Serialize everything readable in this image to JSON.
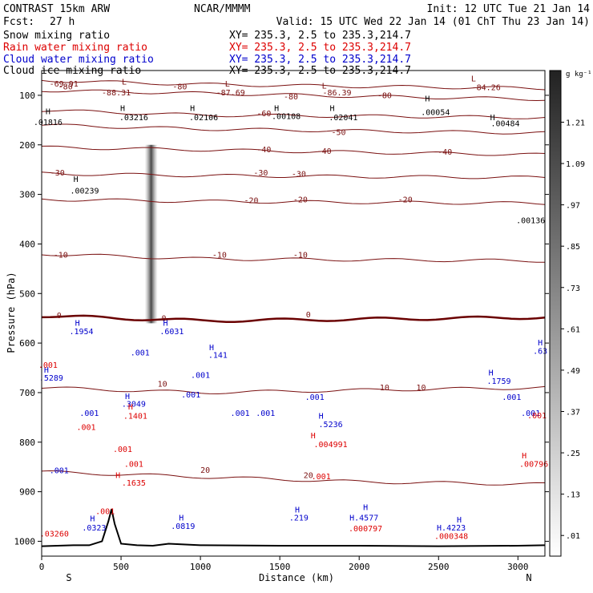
{
  "header": {
    "title": "CONTRAST 15km ARW",
    "center": "NCAR/MMMM",
    "init": "Init: 12 UTC Tue 21 Jan 14",
    "fcst_label": "Fcst:",
    "fcst_value": "27 h",
    "valid": "Valid: 15 UTC Wed 22 Jan 14 (01 ChT Thu 23 Jan 14)",
    "fields": [
      {
        "label": "Snow mixing ratio",
        "xy": "XY= 235.3,  2.5 to 235.3,214.7",
        "color": "#000000"
      },
      {
        "label": "Rain water mixing ratio",
        "xy": "XY= 235.3,  2.5 to 235.3,214.7",
        "color": "#dd0000"
      },
      {
        "label": "Cloud water mixing ratio",
        "xy": "XY= 235.3,  2.5 to 235.3,214.7",
        "color": "#0000cc"
      },
      {
        "label": "Cloud ice mixing ratio",
        "xy": "XY= 235.3,  2.5 to 235.3,214.7",
        "color": "#000000"
      }
    ]
  },
  "colors": {
    "temperature": "#7a1010",
    "freezing": "#6a0000",
    "cloud_water": "#0000cc",
    "rain": "#dd0000",
    "snow": "#000000"
  },
  "chart_data": {
    "type": "cross-section",
    "xlabel": "Distance (km)",
    "ylabel": "Pressure (hPa)",
    "xlim": [
      0,
      3170
    ],
    "ylim": [
      50,
      1030
    ],
    "x_ticks": [
      0,
      500,
      1000,
      1500,
      2000,
      2500,
      3000
    ],
    "y_ticks": [
      100,
      200,
      300,
      400,
      500,
      600,
      700,
      800,
      900,
      1000
    ],
    "end_labels": {
      "left": "S",
      "right": "N"
    },
    "terrain_profile": {
      "distance_km": [
        0,
        100,
        200,
        300,
        380,
        420,
        440,
        460,
        500,
        600,
        700,
        800,
        1000,
        1500,
        2000,
        2500,
        3000,
        3170
      ],
      "pressure_hPa": [
        1010,
        1009,
        1008,
        1008,
        1000,
        960,
        935,
        965,
        1005,
        1008,
        1009,
        1005,
        1008,
        1009,
        1009,
        1010,
        1009,
        1008
      ]
    },
    "snow_column": {
      "distance_km": 690,
      "p_top": 200,
      "p_bottom": 560
    },
    "colorbar": {
      "unit": "g kg⁻¹",
      "tick_labels": [
        ".01",
        ".13",
        ".25",
        ".37",
        ".49",
        ".61",
        ".73",
        ".85",
        ".97",
        "1.09",
        "1.21"
      ],
      "tick_values": [
        0.01,
        0.13,
        0.25,
        0.37,
        0.49,
        0.61,
        0.73,
        0.85,
        0.97,
        1.09,
        1.21
      ]
    },
    "temperature_contours": [
      {
        "level": -80,
        "p": [
          70,
          78,
          82,
          86
        ]
      },
      {
        "level": -70,
        "p": [
          90,
          96,
          102,
          108
        ]
      },
      {
        "level": -60,
        "p": [
          130,
          140,
          142,
          145
        ]
      },
      {
        "level": -50,
        "p": [
          160,
          168,
          172,
          176
        ]
      },
      {
        "level": -40,
        "p": [
          205,
          210,
          215,
          220
        ]
      },
      {
        "level": -30,
        "p": [
          258,
          262,
          264,
          266
        ]
      },
      {
        "level": -20,
        "p": [
          310,
          314,
          316,
          318
        ]
      },
      {
        "level": -10,
        "p": [
          420,
          430,
          432,
          434
        ]
      },
      {
        "level": 0,
        "p": [
          545,
          555,
          552,
          548
        ]
      },
      {
        "level": 10,
        "p": [
          690,
          700,
          695,
          690
        ]
      },
      {
        "level": 20,
        "p": [
          860,
          870,
          880,
          885
        ]
      }
    ],
    "contour_labels": [
      {
        "text": "-80",
        "x": 150,
        "p": 88,
        "kind": "temp"
      },
      {
        "text": "-80",
        "x": 870,
        "p": 88,
        "kind": "temp"
      },
      {
        "text": "-80",
        "x": 1570,
        "p": 108,
        "kind": "temp"
      },
      {
        "text": "-80",
        "x": 2160,
        "p": 106,
        "kind": "temp"
      },
      {
        "text": "-60",
        "x": 1400,
        "p": 142,
        "kind": "temp"
      },
      {
        "text": "-50",
        "x": 1870,
        "p": 180,
        "kind": "temp"
      },
      {
        "text": "-40",
        "x": 1400,
        "p": 215,
        "kind": "temp"
      },
      {
        "text": "-40",
        "x": 1780,
        "p": 218,
        "kind": "temp"
      },
      {
        "text": "-40",
        "x": 2540,
        "p": 220,
        "kind": "temp"
      },
      {
        "text": "-30",
        "x": 100,
        "p": 262,
        "kind": "temp"
      },
      {
        "text": "-30",
        "x": 1380,
        "p": 262,
        "kind": "temp"
      },
      {
        "text": "-30",
        "x": 1620,
        "p": 264,
        "kind": "temp"
      },
      {
        "text": "-20",
        "x": 1320,
        "p": 318,
        "kind": "temp"
      },
      {
        "text": "-20",
        "x": 1630,
        "p": 316,
        "kind": "temp"
      },
      {
        "text": "-20",
        "x": 2290,
        "p": 316,
        "kind": "temp"
      },
      {
        "text": "-10",
        "x": 120,
        "p": 428,
        "kind": "temp"
      },
      {
        "text": "-10",
        "x": 1120,
        "p": 428,
        "kind": "temp"
      },
      {
        "text": "-10",
        "x": 1630,
        "p": 428,
        "kind": "temp"
      },
      {
        "text": "0",
        "x": 110,
        "p": 550,
        "kind": "temp"
      },
      {
        "text": "0",
        "x": 770,
        "p": 555,
        "kind": "temp"
      },
      {
        "text": "0",
        "x": 1680,
        "p": 548,
        "kind": "temp"
      },
      {
        "text": "10",
        "x": 760,
        "p": 688,
        "kind": "temp"
      },
      {
        "text": "10",
        "x": 2160,
        "p": 695,
        "kind": "temp"
      },
      {
        "text": "10",
        "x": 2390,
        "p": 695,
        "kind": "temp"
      },
      {
        "text": "20",
        "x": 1030,
        "p": 862,
        "kind": "temp"
      },
      {
        "text": "20",
        "x": 1680,
        "p": 872,
        "kind": "temp"
      }
    ],
    "extrema_labels": [
      {
        "text": "-69.91",
        "x": 140,
        "p": 82,
        "kind": "temp"
      },
      {
        "text": "L",
        "x": 520,
        "p": 78,
        "kind": "temp"
      },
      {
        "text": "-88.31",
        "x": 470,
        "p": 100,
        "kind": "temp"
      },
      {
        "text": "L",
        "x": 1170,
        "p": 82,
        "kind": "temp"
      },
      {
        "text": "-87.69",
        "x": 1190,
        "p": 100,
        "kind": "temp"
      },
      {
        "text": "L",
        "x": 1780,
        "p": 86,
        "kind": "temp"
      },
      {
        "text": "-86.39",
        "x": 1860,
        "p": 100,
        "kind": "temp"
      },
      {
        "text": "L",
        "x": 2720,
        "p": 72,
        "kind": "temp"
      },
      {
        "text": "-84.26",
        "x": 2800,
        "p": 90,
        "kind": "temp"
      },
      {
        "text": "H",
        "x": 40,
        "p": 138,
        "kind": "snow"
      },
      {
        "text": ".01816",
        "x": 40,
        "p": 160,
        "kind": "snow"
      },
      {
        "text": "H",
        "x": 510,
        "p": 132,
        "kind": "snow"
      },
      {
        "text": ".03216",
        "x": 580,
        "p": 150,
        "kind": "snow"
      },
      {
        "text": "H",
        "x": 950,
        "p": 132,
        "kind": "snow"
      },
      {
        "text": ".02106",
        "x": 1020,
        "p": 150,
        "kind": "snow"
      },
      {
        "text": "H",
        "x": 1480,
        "p": 132,
        "kind": "snow"
      },
      {
        "text": ".00108",
        "x": 1540,
        "p": 148,
        "kind": "snow"
      },
      {
        "text": "H",
        "x": 1830,
        "p": 132,
        "kind": "snow"
      },
      {
        "text": ".02041",
        "x": 1900,
        "p": 150,
        "kind": "snow"
      },
      {
        "text": "H",
        "x": 2430,
        "p": 112,
        "kind": "snow"
      },
      {
        "text": ".00054",
        "x": 2480,
        "p": 140,
        "kind": "snow"
      },
      {
        "text": "H",
        "x": 2840,
        "p": 150,
        "kind": "snow"
      },
      {
        "text": ".00484",
        "x": 2920,
        "p": 162,
        "kind": "snow"
      },
      {
        "text": "H",
        "x": 215,
        "p": 275,
        "kind": "snow"
      },
      {
        "text": ".00239",
        "x": 270,
        "p": 298,
        "kind": "snow"
      },
      {
        "text": ".00136",
        "x": 3080,
        "p": 358,
        "kind": "snow"
      },
      {
        "text": "H",
        "x": 225,
        "p": 565,
        "kind": "cloud"
      },
      {
        "text": ".1954",
        "x": 250,
        "p": 582,
        "kind": "cloud"
      },
      {
        "text": "H",
        "x": 780,
        "p": 565,
        "kind": "cloud"
      },
      {
        "text": ".6031",
        "x": 820,
        "p": 582,
        "kind": "cloud"
      },
      {
        "text": ".001",
        "x": 620,
        "p": 625,
        "kind": "cloud"
      },
      {
        "text": "H",
        "x": 1070,
        "p": 614,
        "kind": "cloud"
      },
      {
        "text": ".141",
        "x": 1110,
        "p": 630,
        "kind": "cloud"
      },
      {
        "text": ".001",
        "x": 1000,
        "p": 670,
        "kind": "cloud"
      },
      {
        "text": ".001",
        "x": 940,
        "p": 710,
        "kind": "cloud"
      },
      {
        "text": "H",
        "x": 30,
        "p": 660,
        "kind": "cloud"
      },
      {
        "text": ".5289",
        "x": 60,
        "p": 676,
        "kind": "cloud"
      },
      {
        "text": "H",
        "x": 540,
        "p": 713,
        "kind": "cloud"
      },
      {
        "text": ".3049",
        "x": 580,
        "p": 728,
        "kind": "cloud"
      },
      {
        "text": ".001",
        "x": 300,
        "p": 747,
        "kind": "cloud"
      },
      {
        "text": ".001",
        "x": 1250,
        "p": 747,
        "kind": "cloud"
      },
      {
        "text": ".001",
        "x": 1410,
        "p": 747,
        "kind": "cloud"
      },
      {
        "text": ".001",
        "x": 110,
        "p": 863,
        "kind": "cloud"
      },
      {
        "text": ".001",
        "x": 1720,
        "p": 715,
        "kind": "cloud"
      },
      {
        "text": "H",
        "x": 1760,
        "p": 753,
        "kind": "cloud"
      },
      {
        "text": ".5236",
        "x": 1820,
        "p": 770,
        "kind": "cloud"
      },
      {
        "text": "H",
        "x": 2830,
        "p": 665,
        "kind": "cloud"
      },
      {
        "text": ".1759",
        "x": 2880,
        "p": 682,
        "kind": "cloud"
      },
      {
        "text": ".001",
        "x": 2960,
        "p": 715,
        "kind": "cloud"
      },
      {
        "text": ".001",
        "x": 3080,
        "p": 747,
        "kind": "cloud"
      },
      {
        "text": "H",
        "x": 3140,
        "p": 605,
        "kind": "cloud"
      },
      {
        "text": ".63",
        "x": 3140,
        "p": 622,
        "kind": "cloud"
      },
      {
        "text": "H",
        "x": 320,
        "p": 960,
        "kind": "cloud"
      },
      {
        "text": ".0323",
        "x": 330,
        "p": 978,
        "kind": "cloud"
      },
      {
        "text": "H",
        "x": 880,
        "p": 958,
        "kind": "cloud"
      },
      {
        "text": ".0819",
        "x": 890,
        "p": 975,
        "kind": "cloud"
      },
      {
        "text": "H",
        "x": 1610,
        "p": 942,
        "kind": "cloud"
      },
      {
        "text": ".219",
        "x": 1620,
        "p": 958,
        "kind": "cloud"
      },
      {
        "text": "H",
        "x": 2040,
        "p": 937,
        "kind": "cloud"
      },
      {
        "text": "H",
        "x": 2630,
        "p": 962,
        "kind": "cloud"
      },
      {
        "text": "H.4577",
        "x": 2030,
        "p": 958,
        "kind": "cloud"
      },
      {
        "text": "H.4223",
        "x": 2580,
        "p": 978,
        "kind": "cloud"
      },
      {
        "text": ".001",
        "x": 40,
        "p": 650,
        "kind": "rain"
      },
      {
        "text": ".001",
        "x": 280,
        "p": 775,
        "kind": "rain"
      },
      {
        "text": "H",
        "x": 560,
        "p": 734,
        "kind": "rain"
      },
      {
        "text": ".1401",
        "x": 590,
        "p": 753,
        "kind": "rain"
      },
      {
        "text": ".001",
        "x": 510,
        "p": 820,
        "kind": "rain"
      },
      {
        "text": "H",
        "x": 480,
        "p": 872,
        "kind": "rain"
      },
      {
        "text": ".1635",
        "x": 580,
        "p": 888,
        "kind": "rain"
      },
      {
        "text": ".001",
        "x": 400,
        "p": 945,
        "kind": "rain"
      },
      {
        "text": ".001",
        "x": 580,
        "p": 850,
        "kind": "rain"
      },
      {
        "text": ".03260",
        "x": 80,
        "p": 990,
        "kind": "rain"
      },
      {
        "text": "H",
        "x": 1710,
        "p": 792,
        "kind": "rain"
      },
      {
        "text": ".004991",
        "x": 1820,
        "p": 810,
        "kind": "rain"
      },
      {
        "text": ".001",
        "x": 1760,
        "p": 875,
        "kind": "rain"
      },
      {
        "text": ".000797",
        "x": 2040,
        "p": 980,
        "kind": "rain"
      },
      {
        "text": ".000348",
        "x": 2580,
        "p": 995,
        "kind": "rain"
      },
      {
        "text": "H",
        "x": 3040,
        "p": 833,
        "kind": "rain"
      },
      {
        "text": ".00796",
        "x": 3100,
        "p": 850,
        "kind": "rain"
      },
      {
        "text": ".001",
        "x": 3120,
        "p": 752,
        "kind": "rain"
      }
    ]
  }
}
